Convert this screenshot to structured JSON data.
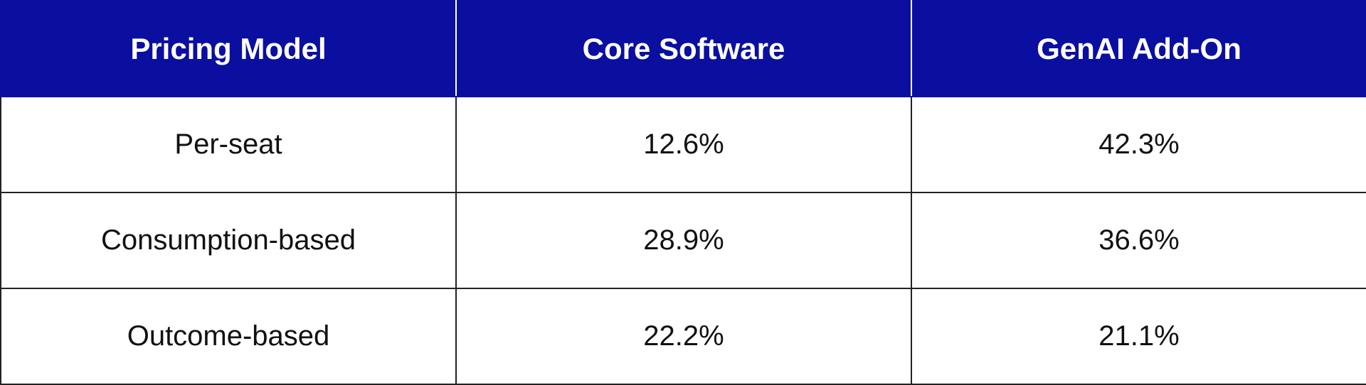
{
  "table": {
    "headers": [
      "Pricing Model",
      "Core Software",
      "GenAI Add-On"
    ],
    "rows": [
      [
        "Per-seat",
        "12.6%",
        "42.3%"
      ],
      [
        "Consumption-based",
        "28.9%",
        "36.6%"
      ],
      [
        "Outcome-based",
        "22.2%",
        "21.1%"
      ]
    ]
  },
  "colors": {
    "header_bg": "#0a0fa0",
    "header_text": "#ffffff",
    "body_text": "#111111",
    "grid": "#222222"
  }
}
